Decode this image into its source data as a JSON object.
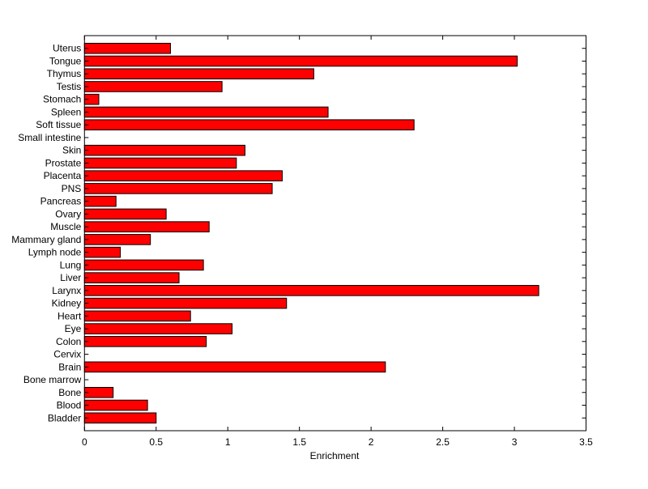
{
  "chart_data": {
    "type": "bar",
    "orientation": "horizontal",
    "xlabel": "Enrichment",
    "ylabel": "",
    "title": "",
    "xlim": [
      0,
      3.5
    ],
    "xticks": [
      "0",
      "0.5",
      "1",
      "1.5",
      "2",
      "2.5",
      "3",
      "3.5"
    ],
    "grid": false,
    "bar_color": "#ff0000",
    "categories": [
      "Bladder",
      "Blood",
      "Bone",
      "Bone marrow",
      "Brain",
      "Cervix",
      "Colon",
      "Eye",
      "Heart",
      "Kidney",
      "Larynx",
      "Liver",
      "Lung",
      "Lymph node",
      "Mammary gland",
      "Muscle",
      "Ovary",
      "Pancreas",
      "PNS",
      "Placenta",
      "Prostate",
      "Skin",
      "Small intestine",
      "Soft tissue",
      "Spleen",
      "Stomach",
      "Testis",
      "Thymus",
      "Tongue",
      "Uterus"
    ],
    "values": [
      0.5,
      0.44,
      0.2,
      0,
      2.1,
      0,
      0.85,
      1.03,
      0.74,
      1.41,
      3.17,
      0.66,
      0.83,
      0.25,
      0.46,
      0.87,
      0.57,
      0.22,
      1.31,
      1.38,
      1.06,
      1.12,
      0,
      2.3,
      1.7,
      0.1,
      0.96,
      1.6,
      3.02,
      0.6
    ]
  }
}
